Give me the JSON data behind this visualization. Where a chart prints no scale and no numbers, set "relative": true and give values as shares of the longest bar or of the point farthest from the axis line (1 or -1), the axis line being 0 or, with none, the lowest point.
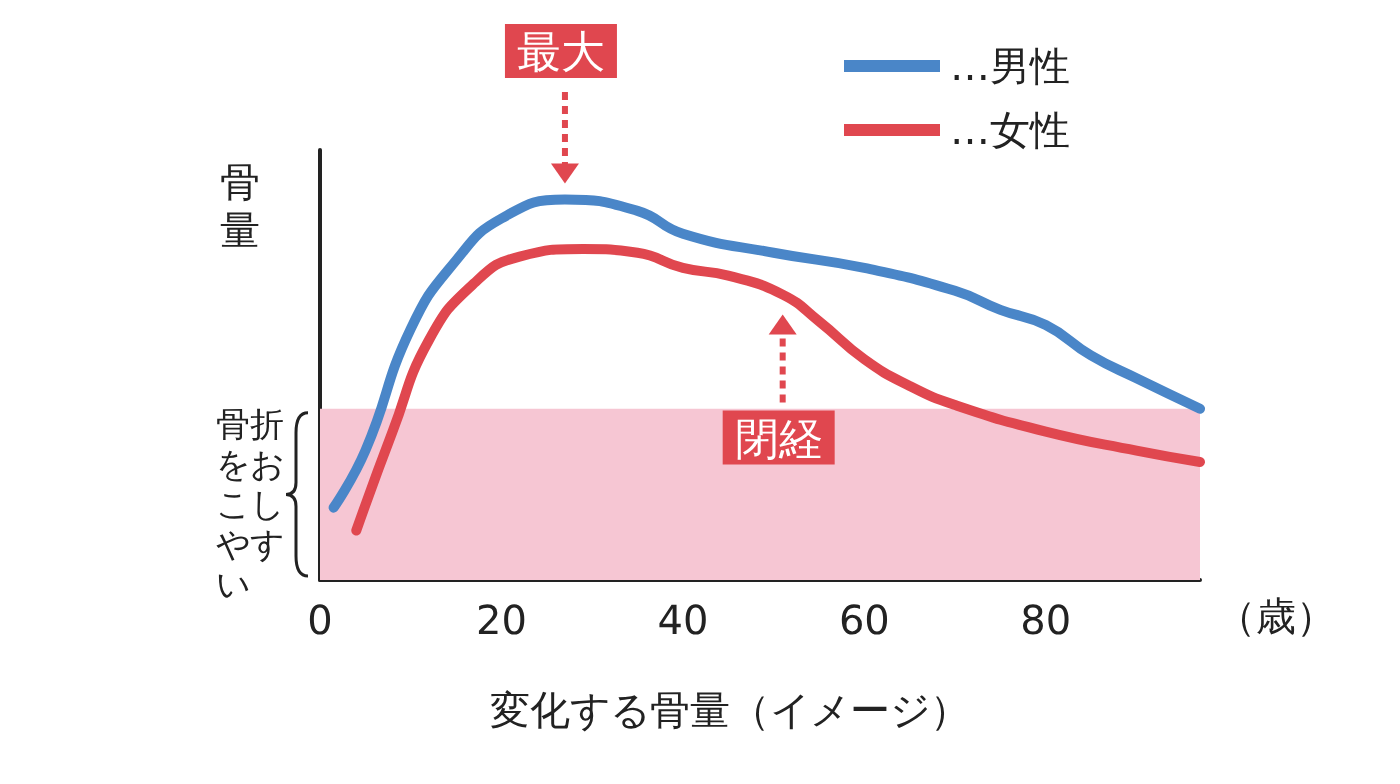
{
  "chart_data": {
    "type": "line",
    "title": "変化する骨量（イメージ）",
    "xlabel": "（歳）",
    "ylabel": "骨量",
    "relative": true,
    "xlim": [
      0,
      97
    ],
    "xticks": [
      0,
      20,
      40,
      60,
      80
    ],
    "grid": false,
    "legend": "top right",
    "marker": "none",
    "line_style": "solid",
    "series": [
      {
        "name": "…男性",
        "color": "#4a86c8",
        "x": [
          1.5,
          5,
          10,
          15,
          20,
          27,
          35,
          40,
          50,
          60,
          70,
          75,
          80,
          85,
          90,
          97
        ],
        "values": [
          0.19,
          0.34,
          0.66,
          0.84,
          0.95,
          1,
          0.97,
          0.91,
          0.86,
          0.82,
          0.76,
          0.71,
          0.67,
          0.59,
          0.53,
          0.45
        ]
      },
      {
        "name": "…女性",
        "color": "#e0474f",
        "x": [
          4,
          8,
          12,
          17,
          22,
          29,
          35,
          40,
          45,
          51,
          55,
          60,
          65,
          70,
          80,
          90,
          97
        ],
        "values": [
          0.13,
          0.39,
          0.63,
          0.78,
          0.85,
          0.87,
          0.86,
          0.82,
          0.8,
          0.75,
          0.68,
          0.58,
          0.51,
          0.46,
          0.39,
          0.34,
          0.31
        ]
      }
    ],
    "bands": [
      {
        "axis": "y",
        "from": 0,
        "to": 0.45,
        "label": "骨折をおこしやすい",
        "color": "#f6c6d3"
      }
    ],
    "annotations": [
      {
        "text": "最大",
        "x": 27,
        "y": 1
      },
      {
        "text": "閉経",
        "x": 51,
        "y": 0.75
      }
    ]
  }
}
